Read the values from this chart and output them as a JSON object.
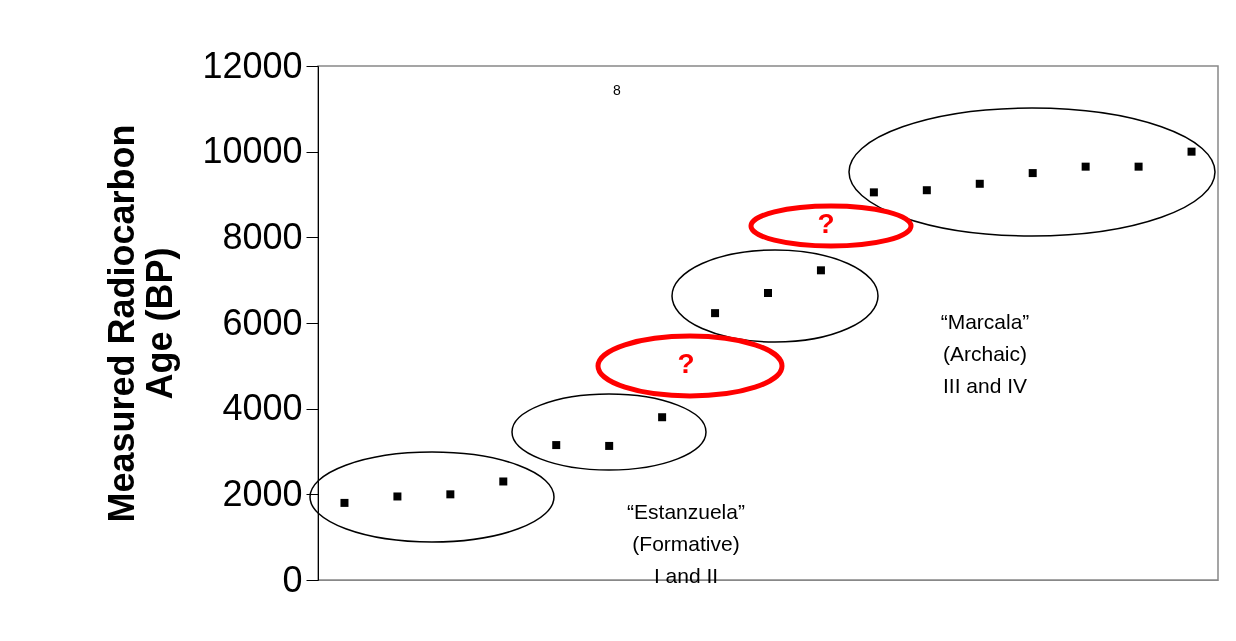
{
  "chart_data": {
    "type": "scatter",
    "ylabel": "Measured Radiocarbon Age (BP)",
    "categories": [
      null,
      null,
      null,
      null,
      null,
      null,
      null,
      null,
      null,
      null,
      null,
      null,
      null,
      null,
      null,
      null,
      null
    ],
    "values": [
      1800,
      1950,
      2000,
      2300,
      3150,
      3130,
      3800,
      6230,
      6700,
      7230,
      9050,
      9100,
      9250,
      9500,
      9650,
      9650,
      10000
    ],
    "color": "#000000",
    "marker": "square",
    "ylim": [
      0,
      12000
    ],
    "yticks": [
      0,
      2000,
      4000,
      6000,
      8000,
      10000,
      12000
    ],
    "grid": false,
    "annotations": [
      "8",
      "“Estanzuela”\n(Formative)\nI and II",
      "“Marcala”\n(Archaic)\nIII and IV",
      "?",
      "?"
    ]
  }
}
